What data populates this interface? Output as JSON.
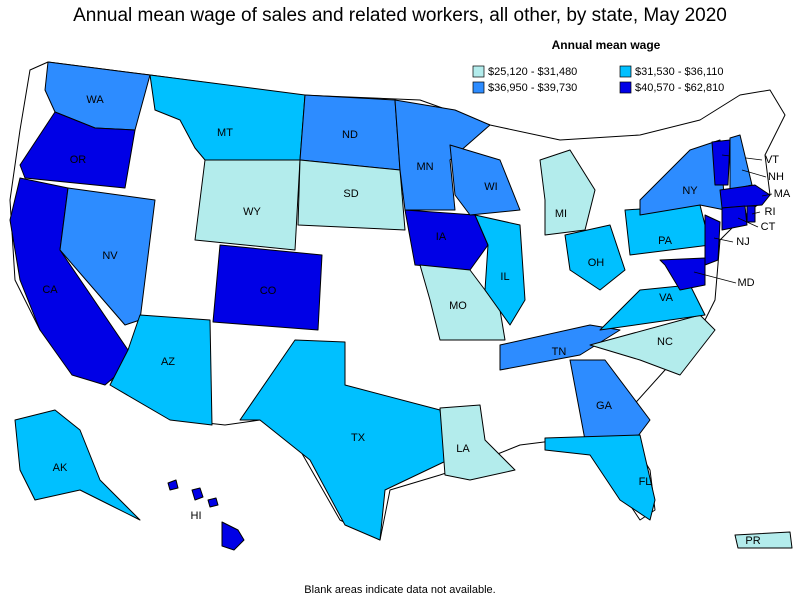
{
  "title": "Annual mean wage of sales and related workers, all other, by state, May 2020",
  "legend": {
    "title": "Annual mean wage",
    "items": [
      {
        "label": "$25,120 - $31,480",
        "color": "#b3ecec"
      },
      {
        "label": "$31,530 - $36,110",
        "color": "#00c0ff"
      },
      {
        "label": "$36,950 - $39,730",
        "color": "#2d8cff"
      },
      {
        "label": "$40,570 - $62,810",
        "color": "#0000e6"
      }
    ]
  },
  "states": [
    {
      "label": "WA",
      "color": "#2d8cff"
    },
    {
      "label": "OR",
      "color": "#0000e6"
    },
    {
      "label": "CA",
      "color": "#0000e6"
    },
    {
      "label": "NV",
      "color": "#2d8cff"
    },
    {
      "label": "AZ",
      "color": "#00c0ff"
    },
    {
      "label": "MT",
      "color": "#00c0ff"
    },
    {
      "label": "WY",
      "color": "#b3ecec"
    },
    {
      "label": "CO",
      "color": "#0000e6"
    },
    {
      "label": "ND",
      "color": "#2d8cff"
    },
    {
      "label": "SD",
      "color": "#b3ecec"
    },
    {
      "label": "MN",
      "color": "#2d8cff"
    },
    {
      "label": "IA",
      "color": "#0000e6"
    },
    {
      "label": "MO",
      "color": "#b3ecec"
    },
    {
      "label": "WI",
      "color": "#2d8cff"
    },
    {
      "label": "IL",
      "color": "#00c0ff"
    },
    {
      "label": "MI",
      "color": "#b3ecec"
    },
    {
      "label": "OH",
      "color": "#00c0ff"
    },
    {
      "label": "TX",
      "color": "#00c0ff"
    },
    {
      "label": "LA",
      "color": "#b3ecec"
    },
    {
      "label": "TN",
      "color": "#2d8cff"
    },
    {
      "label": "GA",
      "color": "#2d8cff"
    },
    {
      "label": "FL",
      "color": "#00c0ff"
    },
    {
      "label": "NC",
      "color": "#b3ecec"
    },
    {
      "label": "VA",
      "color": "#00c0ff"
    },
    {
      "label": "PA",
      "color": "#00c0ff"
    },
    {
      "label": "NY",
      "color": "#2d8cff"
    },
    {
      "label": "VT",
      "color": "#0000e6"
    },
    {
      "label": "NH",
      "color": "#2d8cff"
    },
    {
      "label": "MA",
      "color": "#0000e6"
    },
    {
      "label": "RI",
      "color": "#0000e6"
    },
    {
      "label": "CT",
      "color": "#0000e6"
    },
    {
      "label": "NJ",
      "color": "#0000e6"
    },
    {
      "label": "MD",
      "color": "#0000e6"
    },
    {
      "label": "AK",
      "color": "#00c0ff"
    },
    {
      "label": "HI",
      "color": "#0000e6"
    },
    {
      "label": "PR",
      "color": "#b3ecec"
    }
  ],
  "footnote": "Blank areas indicate data not available."
}
